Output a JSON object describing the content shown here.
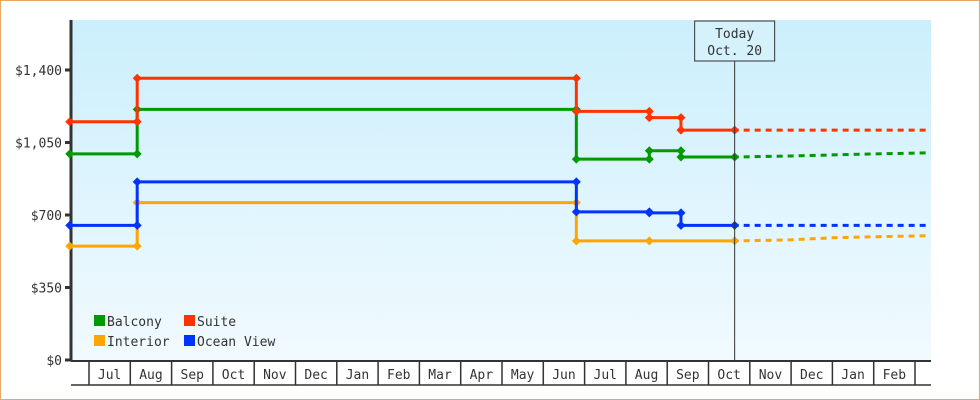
{
  "chart_data": {
    "type": "line",
    "title": "",
    "xlabel": "",
    "ylabel": "",
    "ylim": [
      0,
      1650
    ],
    "yticks": [
      "$0",
      "$350",
      "$700",
      "$1,050",
      "$1,400"
    ],
    "ytick_values": [
      0,
      350,
      700,
      1050,
      1400
    ],
    "xticks": [
      "Jul",
      "Aug",
      "Sep",
      "Oct",
      "Nov",
      "Dec",
      "Jan",
      "Feb",
      "Mar",
      "Apr",
      "May",
      "Jun",
      "Jul",
      "Aug",
      "Sep",
      "Oct",
      "Nov",
      "Dec",
      "Jan",
      "Feb"
    ],
    "grid": false,
    "legend_position": "bottom-left",
    "today_marker": {
      "line1": "Today",
      "line2": "Oct. 20",
      "date": "Oct 20"
    },
    "series": [
      {
        "name": "Balcony",
        "color": "#009900",
        "points": [
          [
            "Jun 17",
            995
          ],
          [
            "Aug 6",
            995
          ],
          [
            "Aug 6",
            1210
          ],
          [
            "Jun 25",
            1210
          ],
          [
            "Jun 25",
            970
          ],
          [
            "Aug 18",
            970
          ],
          [
            "Aug 18",
            1010
          ],
          [
            "Sep 11",
            1010
          ],
          [
            "Sep 11",
            980
          ],
          [
            "Oct 20",
            980
          ]
        ],
        "forecast": [
          [
            "Oct 20",
            980
          ],
          [
            "Dec 1",
            985
          ],
          [
            "Jan 1",
            990
          ],
          [
            "Feb 1",
            995
          ],
          [
            "Mar 11",
            1000
          ]
        ]
      },
      {
        "name": "Suite",
        "color": "#ff3300",
        "points": [
          [
            "Jun 17",
            1150
          ],
          [
            "Aug 6",
            1150
          ],
          [
            "Aug 6",
            1360
          ],
          [
            "Jun 25",
            1360
          ],
          [
            "Jun 25",
            1200
          ],
          [
            "Aug 18",
            1200
          ],
          [
            "Aug 18",
            1170
          ],
          [
            "Sep 11",
            1170
          ],
          [
            "Sep 11",
            1110
          ],
          [
            "Oct 20",
            1110
          ]
        ],
        "forecast": [
          [
            "Oct 20",
            1110
          ],
          [
            "Mar 11",
            1110
          ]
        ]
      },
      {
        "name": "Interior",
        "color": "#ffa500",
        "points": [
          [
            "Jun 17",
            550
          ],
          [
            "Aug 6",
            550
          ],
          [
            "Aug 6",
            760
          ],
          [
            "Jun 25",
            760
          ],
          [
            "Jun 25",
            575
          ],
          [
            "Aug 18",
            575
          ],
          [
            "Oct 20",
            575
          ]
        ],
        "forecast": [
          [
            "Oct 20",
            575
          ],
          [
            "Dec 1",
            580
          ],
          [
            "Jan 1",
            590
          ],
          [
            "Feb 1",
            595
          ],
          [
            "Mar 11",
            600
          ]
        ]
      },
      {
        "name": "Ocean View",
        "color": "#0033ff",
        "points": [
          [
            "Jun 17",
            650
          ],
          [
            "Aug 6",
            650
          ],
          [
            "Aug 6",
            860
          ],
          [
            "Jun 25",
            860
          ],
          [
            "Jun 25",
            715
          ],
          [
            "Aug 18",
            715
          ],
          [
            "Aug 18",
            710
          ],
          [
            "Sep 11",
            710
          ],
          [
            "Sep 11",
            650
          ],
          [
            "Oct 20",
            650
          ]
        ],
        "forecast": [
          [
            "Oct 20",
            650
          ],
          [
            "Mar 11",
            650
          ]
        ]
      }
    ]
  }
}
